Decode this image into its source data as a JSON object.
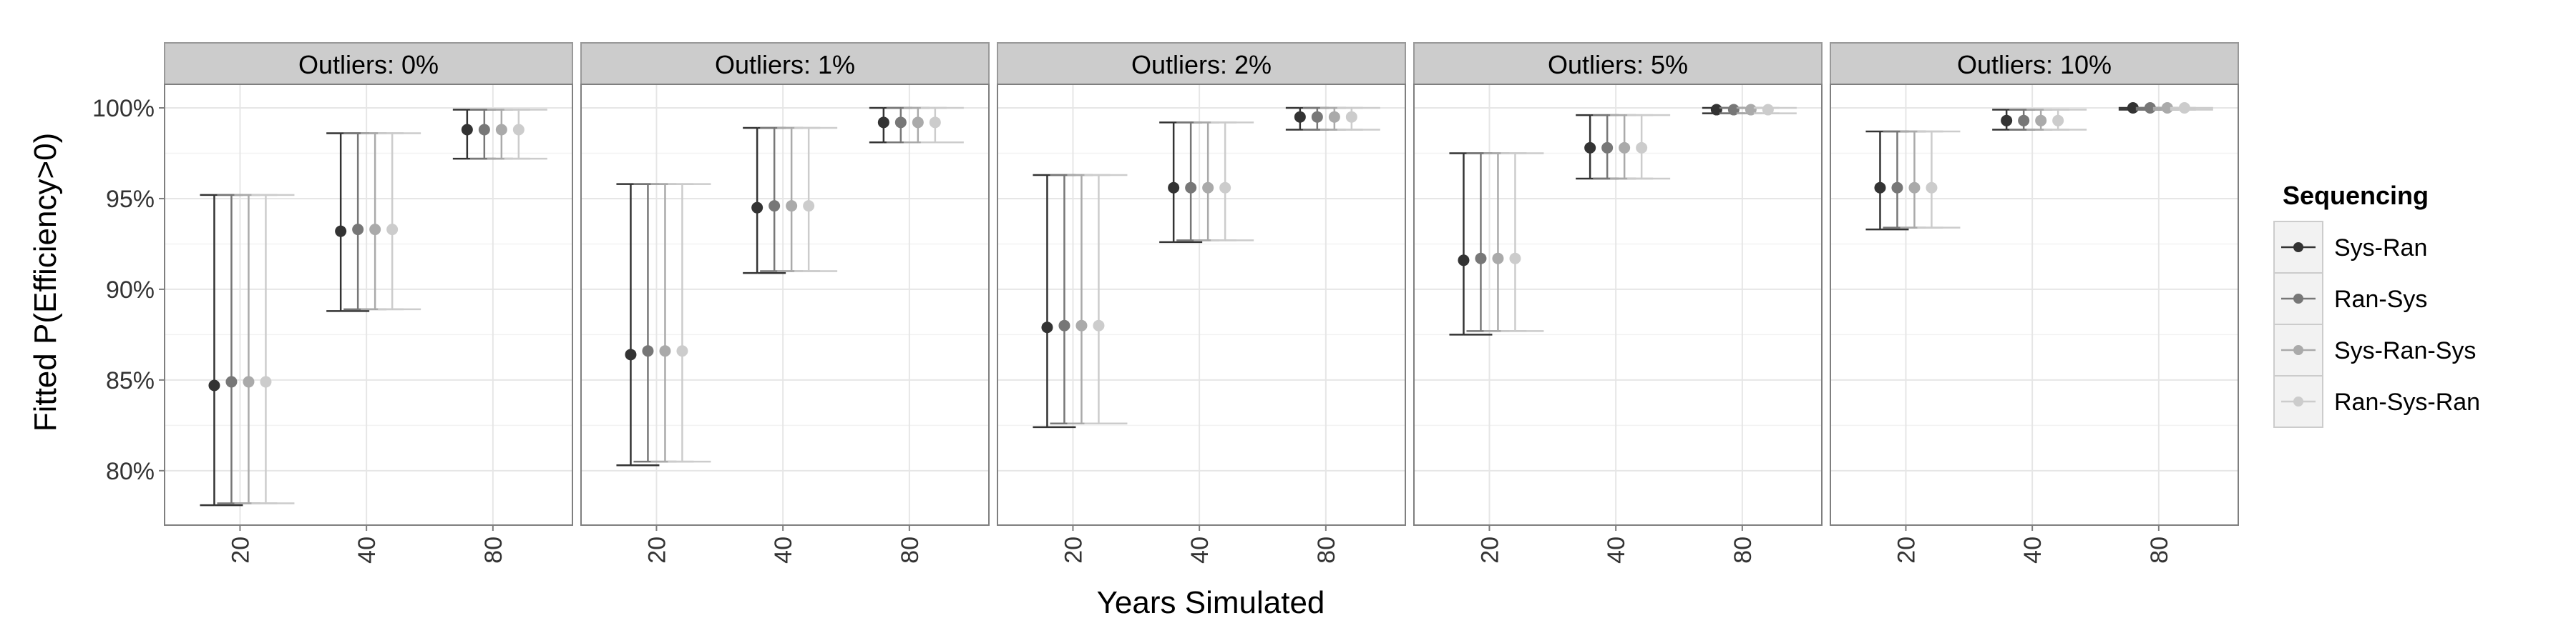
{
  "chart_data": {
    "type": "scatter",
    "subtype": "point-with-errorbars, faceted",
    "xlabel": "Years Simulated",
    "ylabel": "Fitted P(Efficiency>0)",
    "categories": [
      "20",
      "40",
      "80"
    ],
    "ylim": [
      77,
      101.3
    ],
    "yticks": [
      80,
      85,
      90,
      95,
      100
    ],
    "ytick_labels": [
      "80%",
      "85%",
      "90%",
      "95%",
      "100%"
    ],
    "grid": true,
    "legend": {
      "title": "Sequencing",
      "position": "right",
      "entries": [
        "Sys-Ran",
        "Ran-Sys",
        "Sys-Ran-Sys",
        "Ran-Sys-Ran"
      ]
    },
    "colors": [
      "#333333",
      "#777777",
      "#aaaaaa",
      "#cccccc"
    ],
    "facets": [
      {
        "label": "Outliers: 0%",
        "series": [
          {
            "name": "Sys-Ran",
            "values": [
              84.7,
              93.2,
              98.8
            ],
            "lower": [
              78.1,
              88.8,
              97.2
            ],
            "upper": [
              95.2,
              98.6,
              99.9
            ]
          },
          {
            "name": "Ran-Sys",
            "values": [
              84.9,
              93.3,
              98.8
            ],
            "lower": [
              78.2,
              88.9,
              97.2
            ],
            "upper": [
              95.2,
              98.6,
              99.9
            ]
          },
          {
            "name": "Sys-Ran-Sys",
            "values": [
              84.9,
              93.3,
              98.8
            ],
            "lower": [
              78.2,
              88.9,
              97.2
            ],
            "upper": [
              95.2,
              98.6,
              99.9
            ]
          },
          {
            "name": "Ran-Sys-Ran",
            "values": [
              84.9,
              93.3,
              98.8
            ],
            "lower": [
              78.2,
              88.9,
              97.2
            ],
            "upper": [
              95.2,
              98.6,
              99.9
            ]
          }
        ]
      },
      {
        "label": "Outliers: 1%",
        "series": [
          {
            "name": "Sys-Ran",
            "values": [
              86.4,
              94.5,
              99.2
            ],
            "lower": [
              80.3,
              90.9,
              98.1
            ],
            "upper": [
              95.8,
              98.9,
              100.0
            ]
          },
          {
            "name": "Ran-Sys",
            "values": [
              86.6,
              94.6,
              99.2
            ],
            "lower": [
              80.5,
              91.0,
              98.1
            ],
            "upper": [
              95.8,
              98.9,
              100.0
            ]
          },
          {
            "name": "Sys-Ran-Sys",
            "values": [
              86.6,
              94.6,
              99.2
            ],
            "lower": [
              80.5,
              91.0,
              98.1
            ],
            "upper": [
              95.8,
              98.9,
              100.0
            ]
          },
          {
            "name": "Ran-Sys-Ran",
            "values": [
              86.6,
              94.6,
              99.2
            ],
            "lower": [
              80.5,
              91.0,
              98.1
            ],
            "upper": [
              95.8,
              98.9,
              100.0
            ]
          }
        ]
      },
      {
        "label": "Outliers: 2%",
        "series": [
          {
            "name": "Sys-Ran",
            "values": [
              87.9,
              95.6,
              99.5
            ],
            "lower": [
              82.4,
              92.6,
              98.8
            ],
            "upper": [
              96.3,
              99.2,
              100.0
            ]
          },
          {
            "name": "Ran-Sys",
            "values": [
              88.0,
              95.6,
              99.5
            ],
            "lower": [
              82.6,
              92.7,
              98.8
            ],
            "upper": [
              96.3,
              99.2,
              100.0
            ]
          },
          {
            "name": "Sys-Ran-Sys",
            "values": [
              88.0,
              95.6,
              99.5
            ],
            "lower": [
              82.6,
              92.7,
              98.8
            ],
            "upper": [
              96.3,
              99.2,
              100.0
            ]
          },
          {
            "name": "Ran-Sys-Ran",
            "values": [
              88.0,
              95.6,
              99.5
            ],
            "lower": [
              82.6,
              92.7,
              98.8
            ],
            "upper": [
              96.3,
              99.2,
              100.0
            ]
          }
        ]
      },
      {
        "label": "Outliers: 5%",
        "series": [
          {
            "name": "Sys-Ran",
            "values": [
              91.6,
              97.8,
              99.9
            ],
            "lower": [
              87.5,
              96.1,
              99.7
            ],
            "upper": [
              97.5,
              99.6,
              100.0
            ]
          },
          {
            "name": "Ran-Sys",
            "values": [
              91.7,
              97.8,
              99.9
            ],
            "lower": [
              87.7,
              96.1,
              99.7
            ],
            "upper": [
              97.5,
              99.6,
              100.0
            ]
          },
          {
            "name": "Sys-Ran-Sys",
            "values": [
              91.7,
              97.8,
              99.9
            ],
            "lower": [
              87.7,
              96.1,
              99.7
            ],
            "upper": [
              97.5,
              99.6,
              100.0
            ]
          },
          {
            "name": "Ran-Sys-Ran",
            "values": [
              91.7,
              97.8,
              99.9
            ],
            "lower": [
              87.7,
              96.1,
              99.7
            ],
            "upper": [
              97.5,
              99.6,
              100.0
            ]
          }
        ]
      },
      {
        "label": "Outliers: 10%",
        "series": [
          {
            "name": "Sys-Ran",
            "values": [
              95.6,
              99.3,
              100.0
            ],
            "lower": [
              93.3,
              98.8,
              99.9
            ],
            "upper": [
              98.7,
              99.9,
              100.0
            ]
          },
          {
            "name": "Ran-Sys",
            "values": [
              95.6,
              99.3,
              100.0
            ],
            "lower": [
              93.4,
              98.8,
              99.9
            ],
            "upper": [
              98.7,
              99.9,
              100.0
            ]
          },
          {
            "name": "Sys-Ran-Sys",
            "values": [
              95.6,
              99.3,
              100.0
            ],
            "lower": [
              93.4,
              98.8,
              99.9
            ],
            "upper": [
              98.7,
              99.9,
              100.0
            ]
          },
          {
            "name": "Ran-Sys-Ran",
            "values": [
              95.6,
              99.3,
              100.0
            ],
            "lower": [
              93.4,
              98.8,
              99.9
            ],
            "upper": [
              98.7,
              99.9,
              100.0
            ]
          }
        ]
      }
    ]
  }
}
